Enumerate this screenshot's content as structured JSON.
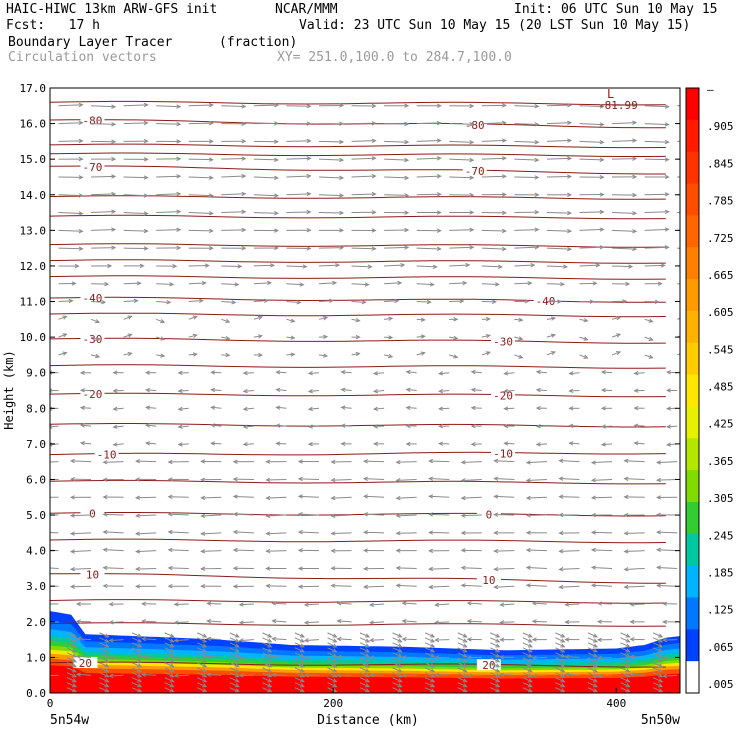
{
  "header": {
    "model": "HAIC-HIWC 13km ARW-GFS init",
    "center": "NCAR/MMM",
    "init": "Init: 06 UTC Sun 10 May 15",
    "fcst": "Fcst:   17 h",
    "valid": "Valid: 23 UTC Sun 10 May 15 (20 LST Sun 10 May 15)",
    "field": "Boundary Layer Tracer",
    "units": "(fraction)",
    "vectors": "Circulation vectors",
    "xy": "XY= 251.0,100.0 to 284.7,100.0"
  },
  "colors": {
    "contour": "#8b1a1a",
    "vector": "#8a8a8a"
  },
  "chart_data": {
    "type": "heatmap",
    "xlabel": "Distance (km)",
    "ylabel": "Height (km)",
    "xlim": [
      0,
      445
    ],
    "ylim": [
      0,
      17
    ],
    "x_ticks": [
      "0",
      "200",
      "400"
    ],
    "x_tick_values": [
      0,
      200,
      400
    ],
    "x_end_labels": [
      "5n54w",
      "5n50w"
    ],
    "y_ticks": [
      "0.0",
      "1.0",
      "2.0",
      "3.0",
      "4.0",
      "5.0",
      "6.0",
      "7.0",
      "8.0",
      "9.0",
      "10.0",
      "11.0",
      "12.0",
      "13.0",
      "14.0",
      "15.0",
      "16.0",
      "17.0"
    ],
    "colorbar": {
      "labels": [
        "–",
        ".905",
        ".845",
        ".785",
        ".725",
        ".665",
        ".605",
        ".545",
        ".485",
        ".425",
        ".365",
        ".305",
        ".245",
        ".185",
        ".125",
        ".065",
        ".005"
      ],
      "colors": [
        "#ff0000",
        "#ff1a00",
        "#ff3300",
        "#ff4d00",
        "#ff6600",
        "#ff8000",
        "#ff9a00",
        "#ffb300",
        "#ffcc00",
        "#ffe600",
        "#e6f000",
        "#b3e600",
        "#80dc00",
        "#33cc33",
        "#00c8a0",
        "#00b4ff",
        "#0078ff",
        "#0040ff",
        "#ffffff"
      ]
    },
    "tracer_top_km": [
      {
        "x": 0,
        "h": 2.3
      },
      {
        "x": 15,
        "h": 2.2
      },
      {
        "x": 25,
        "h": 1.65
      },
      {
        "x": 60,
        "h": 1.6
      },
      {
        "x": 120,
        "h": 1.5
      },
      {
        "x": 170,
        "h": 1.35
      },
      {
        "x": 250,
        "h": 1.3
      },
      {
        "x": 320,
        "h": 1.2
      },
      {
        "x": 400,
        "h": 1.25
      },
      {
        "x": 420,
        "h": 1.35
      },
      {
        "x": 435,
        "h": 1.55
      },
      {
        "x": 445,
        "h": 1.6
      }
    ],
    "temperature_contours": [
      {
        "label": "-80",
        "y0": 16.1,
        "y1": 15.9,
        "labels_at": [
          30,
          300
        ]
      },
      {
        "label": "-70",
        "y0": 14.8,
        "y1": 14.6,
        "labels_at": [
          30,
          300
        ]
      },
      {
        "label": "-40",
        "y0": 11.1,
        "y1": 11.0,
        "labels_at": [
          30,
          350
        ]
      },
      {
        "label": "-30",
        "y0": 9.95,
        "y1": 9.85,
        "labels_at": [
          30,
          320
        ]
      },
      {
        "label": "-20",
        "y0": 8.4,
        "y1": 8.35,
        "labels_at": [
          30,
          320
        ]
      },
      {
        "label": "-10",
        "y0": 6.7,
        "y1": 6.75,
        "labels_at": [
          40,
          320
        ]
      },
      {
        "label": "0",
        "y0": 5.05,
        "y1": 5.0,
        "labels_at": [
          30,
          310
        ]
      },
      {
        "label": "10",
        "y0": 3.35,
        "y1": 3.1,
        "labels_at": [
          30,
          310
        ]
      },
      {
        "label": "20",
        "y0": 0.85,
        "y1": 0.75,
        "labels_at": [
          25,
          310
        ]
      }
    ],
    "extra_contours_km": [
      16.6,
      15.4,
      15.15,
      13.95,
      13.4,
      12.6,
      12.15,
      11.7,
      10.65,
      9.2,
      7.55,
      5.95,
      4.3,
      2.6,
      1.95
    ],
    "min_label": "-81.99",
    "min_marker": "L"
  }
}
